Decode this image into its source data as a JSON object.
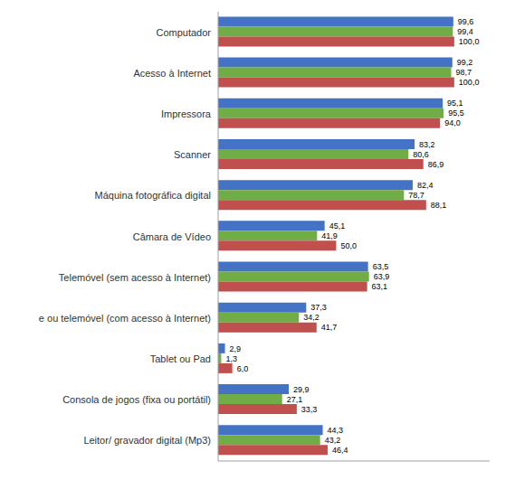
{
  "chart_data": {
    "type": "bar",
    "orientation": "horizontal",
    "categories": [
      "Computador",
      "Acesso à Internet",
      "Impressora",
      "Scanner",
      "Máquina fotográfica digital",
      "Câmara de Vídeo",
      "Telemóvel (sem acesso à Internet)",
      "e ou telemóvel (com acesso à Internet)",
      "Tablet ou Pad",
      "Consola de jogos (fixa ou portátil)",
      "Leitor/ gravador digital (Mp3)"
    ],
    "series": [
      {
        "color": "#4472C4",
        "values": [
          99.6,
          99.2,
          95.1,
          83.2,
          82.4,
          45.1,
          63.5,
          37.3,
          2.9,
          29.9,
          44.3
        ],
        "value_labels": [
          "99,6",
          "99,2",
          "95,1",
          "83,2",
          "82,4",
          "45,1",
          "63,5",
          "37,3",
          "2,9",
          "29,9",
          "44,3"
        ]
      },
      {
        "color": "#70AD47",
        "values": [
          99.4,
          98.7,
          95.5,
          80.6,
          78.7,
          41.9,
          63.9,
          34.2,
          1.3,
          27.1,
          43.2
        ],
        "value_labels": [
          "99,4",
          "98,7",
          "95,5",
          "80,6",
          "78,7",
          "41,9",
          "63,9",
          "34,2",
          "1,3",
          "27,1",
          "43,2"
        ]
      },
      {
        "color": "#C0504D",
        "values": [
          100.0,
          100.0,
          94.0,
          86.9,
          88.1,
          50.0,
          63.1,
          41.7,
          6.0,
          33.3,
          46.4
        ],
        "value_labels": [
          "100,0",
          "100,0",
          "94,0",
          "86,9",
          "88,1",
          "50,0",
          "63,1",
          "41,7",
          "6,0",
          "33,3",
          "46,4"
        ]
      }
    ],
    "xlim": [
      0,
      115
    ],
    "data_labels": true,
    "tick_labels": "y",
    "grid": false
  }
}
